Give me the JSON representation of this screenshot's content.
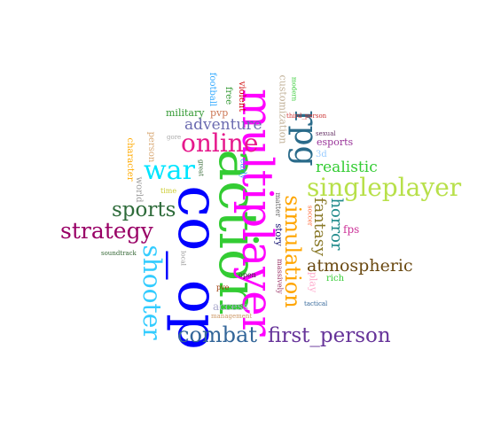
{
  "words": [
    {
      "text": "action",
      "color": "#33cc33"
    },
    {
      "text": "co_op",
      "color": "#0000ff"
    },
    {
      "text": "multiplayer",
      "color": "#ff00ff"
    },
    {
      "text": "singleplayer",
      "color": "#b8e04a"
    },
    {
      "text": "shooter",
      "color": "#33ccff"
    },
    {
      "text": "rpg",
      "color": "#2a6b8a"
    },
    {
      "text": "simulation",
      "color": "#ffa500"
    },
    {
      "text": "combat",
      "color": "#336699"
    },
    {
      "text": "first_person",
      "color": "#663399"
    },
    {
      "text": "online",
      "color": "#e6198c"
    },
    {
      "text": "war",
      "color": "#00e5ff"
    },
    {
      "text": "strategy",
      "color": "#990066"
    },
    {
      "text": "sports",
      "color": "#2e6b3a"
    },
    {
      "text": "adventure",
      "color": "#6b6bb0"
    },
    {
      "text": "atmospheric",
      "color": "#6b4a12"
    },
    {
      "text": "fantasy",
      "color": "#8a7a2a"
    },
    {
      "text": "horror",
      "color": "#1f8a8a"
    },
    {
      "text": "realistic",
      "color": "#33cc33"
    },
    {
      "text": "esports",
      "color": "#993399"
    },
    {
      "text": "fps",
      "color": "#cc3399"
    },
    {
      "text": "customization",
      "color": "#c2b299"
    },
    {
      "text": "football",
      "color": "#33aaff"
    },
    {
      "text": "free",
      "color": "#339933"
    },
    {
      "text": "violent",
      "color": "#cc0000"
    },
    {
      "text": "pvp",
      "color": "#cc7755"
    },
    {
      "text": "military",
      "color": "#339933"
    },
    {
      "text": "person",
      "color": "#d9aa77"
    },
    {
      "text": "character",
      "color": "#ffaa00"
    },
    {
      "text": "gore",
      "color": "#aaaaaa"
    },
    {
      "text": "great",
      "color": "#336633"
    },
    {
      "text": "early",
      "color": "#3399ff"
    },
    {
      "text": "world",
      "color": "#999999"
    },
    {
      "text": "time",
      "color": "#cccc33"
    },
    {
      "text": "modern",
      "color": "#33cc33"
    },
    {
      "text": "third_person",
      "color": "#cc3333"
    },
    {
      "text": "sexual",
      "color": "#663366"
    },
    {
      "text": "3d",
      "color": "#99ccff"
    },
    {
      "text": "soccer",
      "color": "#ff6633"
    },
    {
      "text": "matter",
      "color": "#666666"
    },
    {
      "text": "story",
      "color": "#000066"
    },
    {
      "text": "massively",
      "color": "#993366"
    },
    {
      "text": "play",
      "color": "#ffaacc"
    },
    {
      "text": "rich",
      "color": "#33cc33"
    },
    {
      "text": "open",
      "color": "#333333"
    },
    {
      "text": "pve",
      "color": "#993300"
    },
    {
      "text": "access",
      "color": "#aaaacc"
    },
    {
      "text": "management",
      "color": "#cc9966"
    },
    {
      "text": "tactical",
      "color": "#336699"
    },
    {
      "text": "soundtrack",
      "color": "#336633"
    },
    {
      "text": "local",
      "color": "#999999"
    }
  ]
}
